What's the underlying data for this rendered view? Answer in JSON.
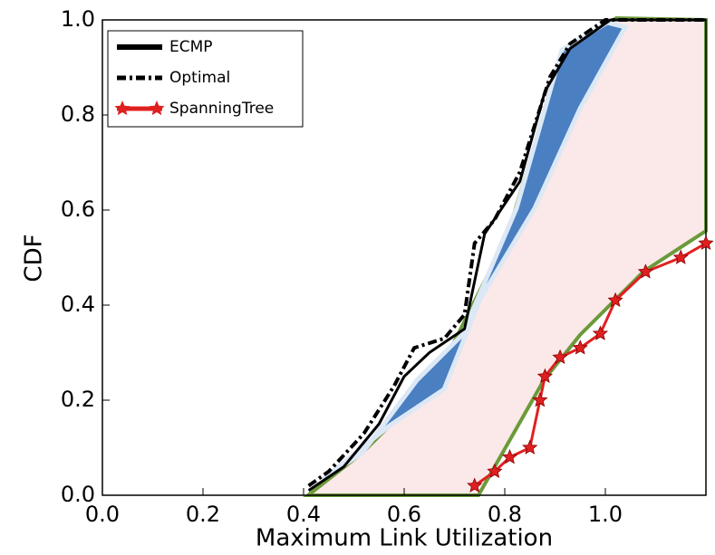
{
  "chart_data": {
    "type": "line",
    "xlabel": "Maximum Link Utilization",
    "ylabel": "CDF",
    "xlim": [
      0,
      1.2
    ],
    "ylim": [
      0,
      1
    ],
    "xticks": [
      {
        "value": 0,
        "label": "0.0"
      },
      {
        "value": 0.2,
        "label": "0.2"
      },
      {
        "value": 0.4,
        "label": "0.4"
      },
      {
        "value": 0.6,
        "label": "0.6"
      },
      {
        "value": 0.8,
        "label": "0.8"
      },
      {
        "value": 1,
        "label": "1.0"
      }
    ],
    "yticks": [
      {
        "value": 0,
        "label": "0.0"
      },
      {
        "value": 0.2,
        "label": "0.2"
      },
      {
        "value": 0.4,
        "label": "0.4"
      },
      {
        "value": 0.6,
        "label": "0.6"
      },
      {
        "value": 0.8,
        "label": "0.8"
      },
      {
        "value": 1,
        "label": "1.0"
      }
    ],
    "legend": "upper left",
    "series": [
      {
        "name": "ECMP",
        "color": "#000000",
        "style": "solid",
        "x": [
          0.41,
          0.48,
          0.55,
          0.6,
          0.65,
          0.72,
          0.76,
          0.83,
          0.88,
          0.93,
          1.01,
          1.2
        ],
        "values": [
          0.01,
          0.06,
          0.15,
          0.25,
          0.3,
          0.35,
          0.55,
          0.66,
          0.85,
          0.94,
          1.0,
          1.0
        ]
      },
      {
        "name": "Optimal",
        "color": "#000000",
        "style": "dashdot",
        "x": [
          0.41,
          0.45,
          0.52,
          0.58,
          0.62,
          0.68,
          0.72,
          0.74,
          0.78,
          0.83,
          0.89,
          0.93,
          1.0,
          1.2
        ],
        "values": [
          0.02,
          0.05,
          0.13,
          0.23,
          0.31,
          0.33,
          0.38,
          0.53,
          0.58,
          0.68,
          0.88,
          0.95,
          1.0,
          1.0
        ]
      },
      {
        "name": "SpanningTree",
        "color": "#e02020",
        "style": "star",
        "x": [
          0.74,
          0.78,
          0.81,
          0.85,
          0.87,
          0.88,
          0.91,
          0.95,
          0.99,
          1.02,
          1.08,
          1.15,
          1.2
        ],
        "values": [
          0.02,
          0.05,
          0.08,
          0.1,
          0.2,
          0.25,
          0.29,
          0.31,
          0.34,
          0.41,
          0.47,
          0.5,
          0.53
        ]
      }
    ]
  }
}
